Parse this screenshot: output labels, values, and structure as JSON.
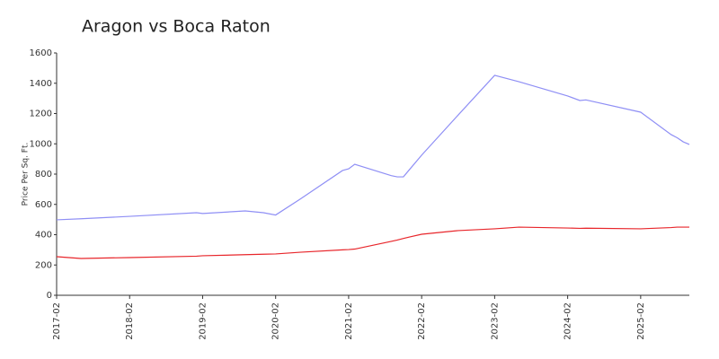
{
  "chart_data": {
    "type": "line",
    "title": "Aragon vs Boca Raton",
    "y_label": "Price Per Sq. Ft.",
    "x": [
      "2017-02",
      "2017-06",
      "2018-02",
      "2019-01",
      "2019-02",
      "2019-09",
      "2019-12",
      "2020-02",
      "2020-06",
      "2021-01",
      "2021-02",
      "2021-03",
      "2021-09",
      "2021-10",
      "2021-11",
      "2021-12",
      "2022-02",
      "2022-08",
      "2023-02",
      "2023-06",
      "2024-02",
      "2024-04",
      "2024-05",
      "2025-02",
      "2025-07",
      "2025-08",
      "2025-09",
      "2025-10"
    ],
    "series": [
      {
        "color": "#8f8ff5",
        "values": [
          498,
          505,
          521,
          545,
          540,
          557,
          545,
          530,
          634,
          824,
          835,
          865,
          790,
          782,
          782,
          830,
          925,
          1190,
          1452,
          1410,
          1316,
          1286,
          1290,
          1209,
          1061,
          1040,
          1013,
          996
        ]
      },
      {
        "color": "#e8262b",
        "values": [
          255,
          243,
          249,
          258,
          261,
          268,
          271,
          273,
          284,
          300,
          302,
          305,
          356,
          365,
          375,
          385,
          403,
          427,
          439,
          450,
          444,
          442,
          443,
          439,
          447,
          450,
          450,
          450
        ]
      }
    ],
    "xlim": [
      "2017-02",
      "2025-10"
    ],
    "xticks": [
      "2017-02",
      "2018-02",
      "2019-02",
      "2020-02",
      "2021-02",
      "2022-02",
      "2023-02",
      "2024-02",
      "2025-02"
    ],
    "ylim": [
      0,
      1600
    ],
    "yticks": [
      0,
      200,
      400,
      600,
      800,
      1000,
      1200,
      1400,
      1600
    ],
    "grid": false
  }
}
